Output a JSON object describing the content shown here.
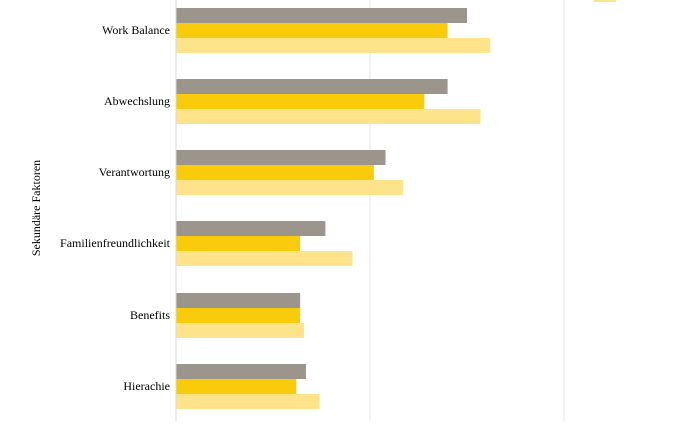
{
  "chart_data": {
    "type": "bar",
    "orientation": "horizontal",
    "ylabel": "Sekundäre Faktoren",
    "xlabel": "",
    "categories": [
      "Work Balance",
      "Abwechslung",
      "Verantwortung",
      "Familienfreundlichkeit",
      "Benefits",
      "Hierachie"
    ],
    "series": [
      {
        "color": "#9b958c",
        "values": [
          0.75,
          0.7,
          0.54,
          0.385,
          0.32,
          0.335
        ]
      },
      {
        "color": "#f9cc0b",
        "values": [
          0.7,
          0.64,
          0.51,
          0.32,
          0.32,
          0.31
        ]
      },
      {
        "color": "#fde48b",
        "values": [
          0.81,
          0.785,
          0.585,
          0.455,
          0.33,
          0.37
        ]
      }
    ],
    "xlim": [
      0,
      1.25
    ],
    "gridlines_x": [
      0.5,
      1.0
    ],
    "grid": true,
    "legend": "top-right (partially cut off)"
  }
}
